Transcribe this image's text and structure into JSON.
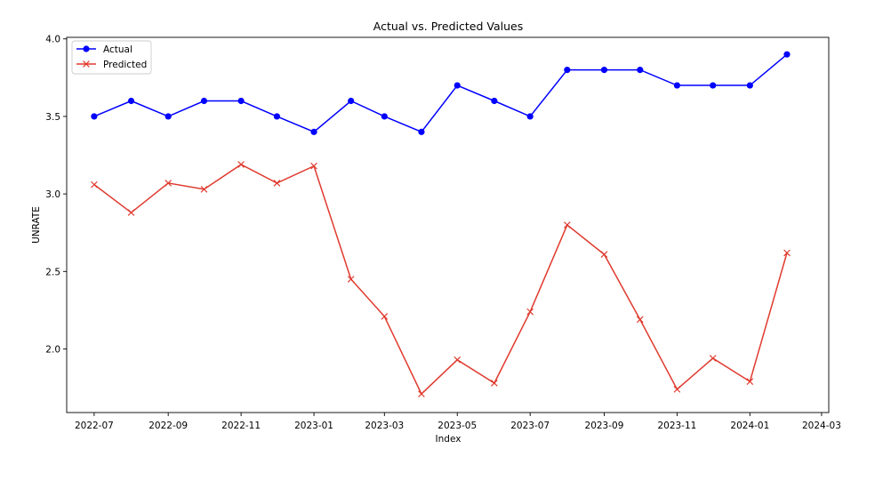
{
  "chart_data": {
    "type": "line",
    "title": "Actual vs. Predicted Values",
    "xlabel": "Index",
    "ylabel": "UNRATE",
    "x": [
      "2022-07",
      "2022-08",
      "2022-09",
      "2022-10",
      "2022-11",
      "2022-12",
      "2023-01",
      "2023-02",
      "2023-03",
      "2023-04",
      "2023-05",
      "2023-06",
      "2023-07",
      "2023-08",
      "2023-09",
      "2023-10",
      "2023-11",
      "2023-12",
      "2024-01",
      "2024-02"
    ],
    "xticks": [
      "2022-07",
      "2022-09",
      "2022-11",
      "2023-01",
      "2023-03",
      "2023-05",
      "2023-07",
      "2023-09",
      "2023-11",
      "2024-01",
      "2024-03"
    ],
    "xlim": [
      "2022-06-08",
      "2024-03-07"
    ],
    "yticks": [
      "2.0",
      "2.5",
      "3.0",
      "3.5",
      "4.0"
    ],
    "ylim": [
      1.59,
      4.01
    ],
    "grid": false,
    "legend_position": "top-left",
    "series": [
      {
        "name": "Actual",
        "color": "#0000ff",
        "marker": "circle",
        "values": [
          3.5,
          3.6,
          3.5,
          3.6,
          3.6,
          3.5,
          3.4,
          3.6,
          3.5,
          3.4,
          3.7,
          3.6,
          3.5,
          3.8,
          3.8,
          3.8,
          3.7,
          3.7,
          3.7,
          3.9
        ]
      },
      {
        "name": "Predicted",
        "color": "#e03a2e",
        "marker": "x",
        "values": [
          3.06,
          2.88,
          3.07,
          3.03,
          3.19,
          3.07,
          3.18,
          2.45,
          2.21,
          1.71,
          1.93,
          1.78,
          2.24,
          2.8,
          2.61,
          2.19,
          1.74,
          1.94,
          1.79,
          2.62
        ]
      }
    ]
  }
}
